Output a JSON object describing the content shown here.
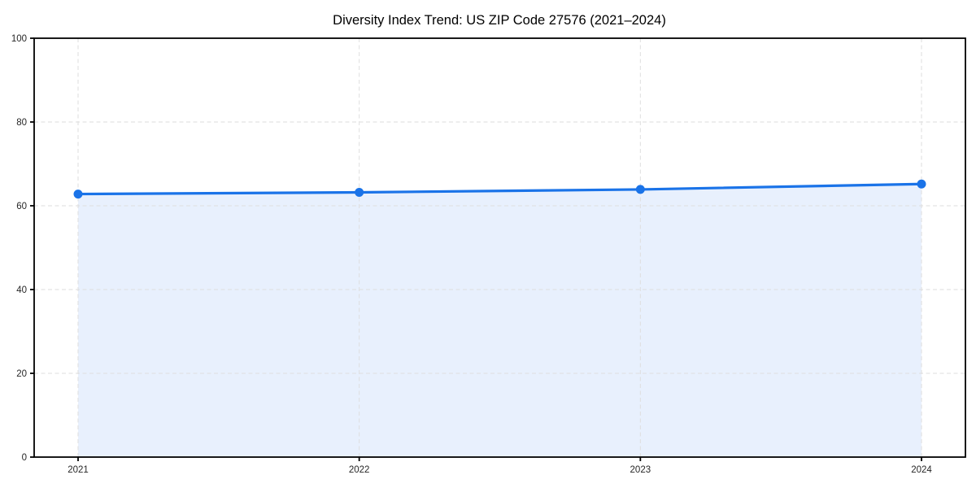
{
  "page": {
    "background_color": "#ffffff"
  },
  "chart_data": {
    "type": "area",
    "title": "Diversity Index Trend: US ZIP Code 27576 (2021–2024)",
    "categories": [
      "2021",
      "2022",
      "2023",
      "2024"
    ],
    "values": [
      62.8,
      63.2,
      63.9,
      65.2
    ],
    "xlabel": "",
    "ylabel": "",
    "ylim": [
      0,
      100
    ],
    "y_ticks": [
      0,
      20,
      40,
      60,
      80,
      100
    ],
    "grid": "dashed-horizontal-and-vertical",
    "legend": "none",
    "markers": true,
    "colors": {
      "line": "#1a73e8",
      "marker": "#1a73e8",
      "fill": "#e8f0fd",
      "grid": "#dedede",
      "axis": "#000000",
      "tick_label": "#262626",
      "title": "#000000"
    }
  }
}
